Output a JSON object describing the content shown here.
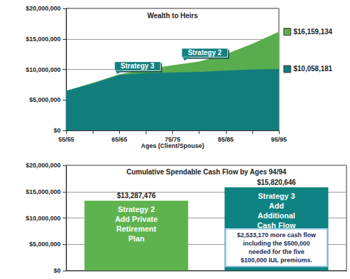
{
  "chart_data": [
    {
      "type": "area",
      "title": "Wealth to Heirs",
      "x_label": "Ages (Client/Spouse)",
      "categories": [
        "55/55",
        null,
        "65/65",
        null,
        "75/75",
        null,
        "85/85",
        null,
        "95/95"
      ],
      "series": [
        {
          "name": "Strategy 2",
          "color": "#5aad4e",
          "values": [
            6500000,
            7800000,
            9200000,
            10000000,
            10700000,
            11300000,
            12500000,
            14200000,
            16159134
          ],
          "end_label": "$16,159,134"
        },
        {
          "name": "Strategy 3",
          "color": "#117d7c",
          "values": [
            6500000,
            7700000,
            9100000,
            9400000,
            9500000,
            9600000,
            9800000,
            10000000,
            10058181
          ],
          "end_label": "$10,058,181"
        }
      ],
      "ylim": [
        0,
        20000000
      ],
      "yticks": [
        {
          "value": 0,
          "label": "$0"
        },
        {
          "value": 5000000,
          "label": "$5,000,000"
        },
        {
          "value": 10000000,
          "label": "$10,000,000"
        },
        {
          "value": 15000000,
          "label": "$15,000,000"
        },
        {
          "value": 20000000,
          "label": "$20,000,000"
        }
      ],
      "grid": true
    },
    {
      "type": "bar",
      "title": "Cumulative Spendable Cash Flow by Ages 94/94",
      "categories": [
        "Strategy 2",
        "Strategy 3"
      ],
      "descriptions": [
        "Add Private\nRetirement\nPlan",
        "Add\nAdditional\nCash Flow"
      ],
      "values": [
        13287476,
        15820646
      ],
      "value_labels": [
        "$13,287,476",
        "$15,820,646"
      ],
      "colors": [
        "#5fb34f",
        "#0f8383"
      ],
      "annotation": "$2,533,170 more cash flow\nincluding the $500,000\nneeded for the five\n$100,000 IUL premiums.",
      "ylim": [
        0,
        20000000
      ],
      "yticks": [
        {
          "value": 0,
          "label": "$0"
        },
        {
          "value": 5000000,
          "label": "$5,000,000"
        },
        {
          "value": 10000000,
          "label": "$10,000,000"
        },
        {
          "value": 15000000,
          "label": "$15,000,000"
        },
        {
          "value": 20000000,
          "label": "$20,000,000"
        }
      ],
      "grid": true,
      "data_labels": true,
      "tick_labels": "y"
    }
  ]
}
